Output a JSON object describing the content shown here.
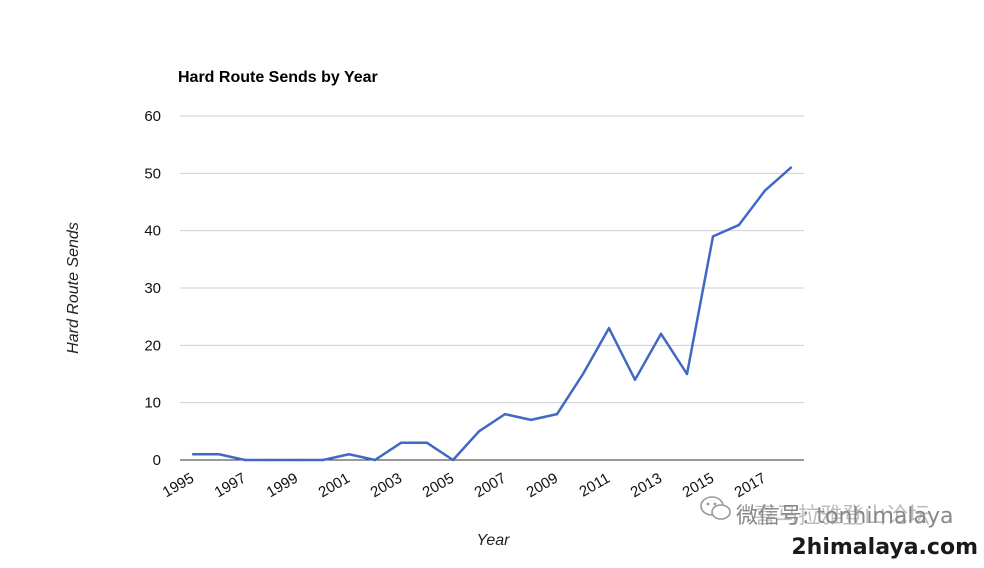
{
  "chart_data": {
    "type": "line",
    "title": "Hard Route Sends by Year",
    "xlabel": "Year",
    "ylabel": "Hard Route Sends",
    "ylim": [
      0,
      60
    ],
    "yticks": [
      0,
      10,
      20,
      30,
      40,
      50,
      60
    ],
    "xtick_labels": [
      "1995",
      "1997",
      "1999",
      "2001",
      "2003",
      "2005",
      "2007",
      "2009",
      "2011",
      "2013",
      "2015",
      "2017"
    ],
    "grid": true,
    "legend": "none",
    "x": [
      1995,
      1996,
      1997,
      1998,
      1999,
      2000,
      2001,
      2002,
      2003,
      2004,
      2005,
      2006,
      2007,
      2008,
      2009,
      2010,
      2011,
      2012,
      2013,
      2014,
      2015,
      2016,
      2017,
      2018
    ],
    "series": [
      {
        "values": [
          1,
          1,
          0,
          0,
          0,
          0,
          1,
          0,
          3,
          3,
          0,
          5,
          8,
          7,
          8,
          15,
          23,
          14,
          22,
          15,
          39,
          41,
          47,
          51
        ],
        "color": "#4169c3"
      }
    ]
  },
  "watermark": {
    "cn_text": "微信号: tonhimalaya",
    "cn_overlay": "喜马拉雅登山论坛",
    "url": "2himalaya.com"
  }
}
